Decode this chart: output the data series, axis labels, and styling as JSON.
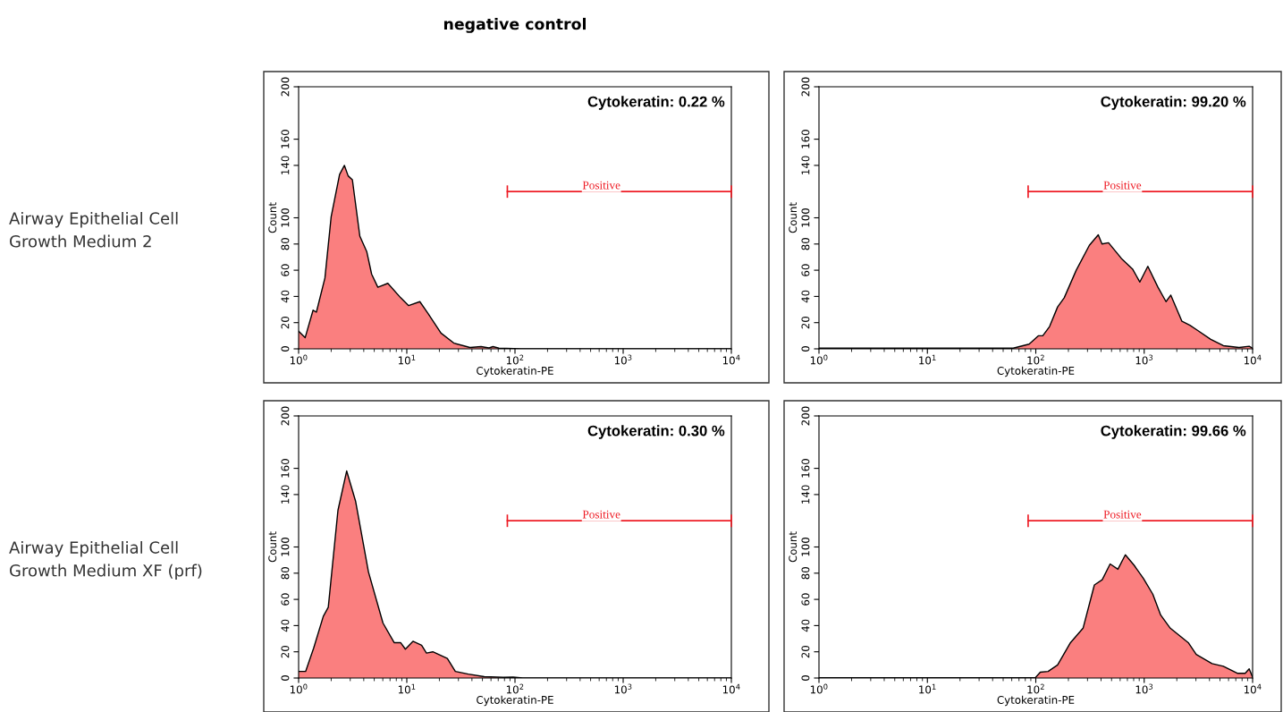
{
  "chart_data": [
    {
      "type": "area",
      "title": "negative control",
      "xlabel": "Cytokeratin-PE",
      "ylabel": "Count",
      "log": "x",
      "grid": false,
      "marker": "none",
      "annotations": [
        "Cytokeratin: 0.22 %",
        "Airway Epithelial Cell\nGrowth Medium 2"
      ],
      "xlim": [
        1,
        10000
      ],
      "xticks": [
        {
          "value": 1,
          "label": "10$^{0}$"
        },
        {
          "value": 10,
          "label": "10$^{1}$"
        },
        {
          "value": 100,
          "label": "10$^{2}$"
        },
        {
          "value": 1000,
          "label": "10$^{3}$"
        },
        {
          "value": 10000,
          "label": "10$^{4}$"
        }
      ],
      "ylim": [
        0,
        200
      ],
      "yticks": [
        0,
        20,
        40,
        60,
        80,
        100,
        140,
        160,
        200
      ],
      "series": [
        {
          "color": "#fa7f7f",
          "x": [
            1,
            1.15,
            1.36,
            1.46,
            1.75,
            2.0,
            2.39,
            2.65,
            2.87,
            3.14,
            3.68,
            4.27,
            4.73,
            5.4,
            6.68,
            8.77,
            10.4,
            13.2,
            15.7,
            20.7,
            27.2,
            38.4,
            48.6,
            57.6,
            62.6,
            71,
            114,
            10000
          ],
          "values": [
            13.5,
            8.6,
            29.5,
            28,
            54,
            101,
            133,
            140,
            132,
            129,
            86,
            74,
            57,
            47,
            50,
            39,
            33,
            36,
            27,
            12,
            4.4,
            1,
            1.7,
            0.7,
            1.7,
            0.5,
            0,
            0
          ]
        },
        {
          "type": "line",
          "name": "Positive",
          "color": "#ee1c25",
          "x": [
            85,
            10000
          ],
          "values": [
            120,
            120
          ]
        }
      ]
    },
    {
      "type": "area",
      "xlabel": "Cytokeratin-PE",
      "ylabel": "Count",
      "log": "x",
      "grid": false,
      "marker": "none",
      "annotations": [
        "Cytokeratin: 99.20 %"
      ],
      "xlim": [
        1,
        10000
      ],
      "xticks": [
        {
          "value": 1,
          "label": "10$^{0}$"
        },
        {
          "value": 10,
          "label": "10$^{1}$"
        },
        {
          "value": 100,
          "label": "10$^{2}$"
        },
        {
          "value": 1000,
          "label": "10$^{3}$"
        },
        {
          "value": 10000,
          "label": "10$^{4}$"
        }
      ],
      "ylim": [
        0,
        200
      ],
      "yticks": [
        0,
        20,
        40,
        60,
        80,
        100,
        140,
        160,
        200
      ],
      "series": [
        {
          "color": "#fa7f7f",
          "x": [
            1,
            61.9,
            86.8,
            106,
            116,
            134,
            159,
            183,
            236,
            312,
            377,
            408,
            469,
            616,
            780,
            912,
            1080,
            1340,
            1590,
            1760,
            2230,
            2640,
            3120,
            4110,
            5370,
            7500,
            9300,
            10000
          ],
          "values": [
            0.5,
            0.5,
            3.6,
            10,
            10,
            17,
            32,
            39,
            60,
            79,
            87,
            80,
            81,
            69,
            61,
            51,
            63,
            47,
            36,
            41,
            21,
            18,
            14,
            7.3,
            2.4,
            1,
            2,
            0.5
          ]
        },
        {
          "type": "line",
          "name": "Positive",
          "color": "#ee1c25",
          "x": [
            85,
            10000
          ],
          "values": [
            120,
            120
          ]
        }
      ]
    },
    {
      "type": "area",
      "xlabel": "Cytokeratin-PE",
      "ylabel": "Count",
      "log": "x",
      "grid": false,
      "marker": "none",
      "annotations": [
        "Cytokeratin: 0.30 %",
        "Airway Epithelial Cell\nGrowth Medium XF (prf)"
      ],
      "xlim": [
        1,
        10000
      ],
      "xticks": [
        {
          "value": 1,
          "label": "10$^{0}$"
        },
        {
          "value": 10,
          "label": "10$^{1}$"
        },
        {
          "value": 100,
          "label": "10$^{2}$"
        },
        {
          "value": 1000,
          "label": "10$^{3}$"
        },
        {
          "value": 10000,
          "label": "10$^{4}$"
        }
      ],
      "ylim": [
        0,
        200
      ],
      "yticks": [
        0,
        20,
        40,
        60,
        80,
        100,
        140,
        160,
        200
      ],
      "series": [
        {
          "color": "#fa7f7f",
          "x": [
            1,
            1.16,
            1.38,
            1.69,
            1.88,
            2.31,
            2.78,
            3.36,
            4.42,
            6.02,
            7.64,
            8.76,
            9.7,
            11.4,
            13.7,
            15.2,
            17.4,
            23.7,
            28.1,
            37,
            52,
            78,
            96,
            118,
            10000
          ],
          "values": [
            5,
            5,
            23,
            47,
            54,
            128,
            158,
            135,
            81,
            42,
            27,
            27,
            22,
            28,
            25,
            19,
            20,
            15,
            5,
            3,
            1,
            0.5,
            0.7,
            0,
            0
          ]
        },
        {
          "type": "line",
          "name": "Positive",
          "color": "#ee1c25",
          "x": [
            85,
            10000
          ],
          "values": [
            120,
            120
          ]
        }
      ]
    },
    {
      "type": "area",
      "xlabel": "Cytokeratin-PE",
      "ylabel": "Count",
      "log": "x",
      "grid": false,
      "marker": "none",
      "annotations": [
        "Cytokeratin: 99.66 %"
      ],
      "xlim": [
        1,
        10000
      ],
      "xticks": [
        {
          "value": 1,
          "label": "10$^{0}$"
        },
        {
          "value": 10,
          "label": "10$^{1}$"
        },
        {
          "value": 100,
          "label": "10$^{2}$"
        },
        {
          "value": 1000,
          "label": "10$^{3}$"
        },
        {
          "value": 10000,
          "label": "10$^{4}$"
        }
      ],
      "ylim": [
        0,
        200
      ],
      "yticks": [
        0,
        20,
        40,
        60,
        80,
        100,
        140,
        160,
        200
      ],
      "series": [
        {
          "color": "#fa7f7f",
          "x": [
            1,
            99,
            110,
            130,
            159,
            209,
            273,
            347,
            410,
            485,
            572,
            670,
            808,
            983,
            1200,
            1420,
            1740,
            2550,
            3020,
            4220,
            5370,
            7220,
            8540,
            9300,
            10000
          ],
          "values": [
            0.2,
            0.2,
            4.4,
            5,
            10,
            27,
            38,
            71,
            75,
            87,
            83,
            94,
            86,
            76,
            64,
            48,
            38,
            27,
            18,
            11,
            9,
            3.6,
            3.6,
            7,
            0.7
          ]
        },
        {
          "type": "line",
          "name": "Positive",
          "color": "#ee1c25",
          "x": [
            85,
            10000
          ],
          "values": [
            120,
            120
          ]
        }
      ]
    }
  ]
}
